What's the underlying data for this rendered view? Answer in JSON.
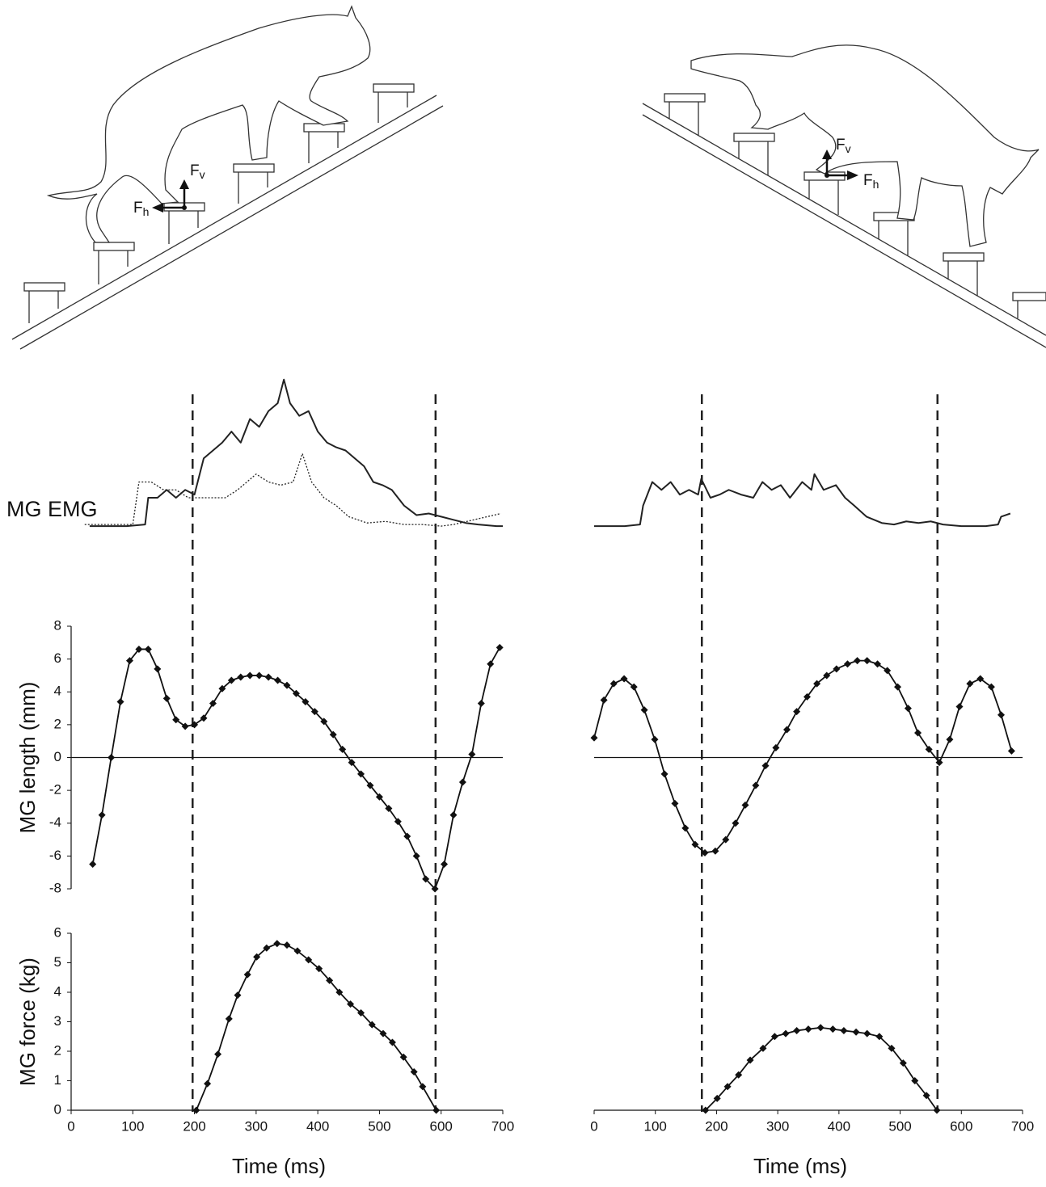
{
  "illustrations": {
    "left": {
      "vertical_force": {
        "symbol": "F",
        "sub": "v"
      },
      "horizontal_force": {
        "symbol": "F",
        "sub": "h"
      }
    },
    "right": {
      "vertical_force": {
        "symbol": "F",
        "sub": "v"
      },
      "horizontal_force": {
        "symbol": "F",
        "sub": "h"
      }
    }
  },
  "chart_data": [
    {
      "type": "emg",
      "ylabel": "MG EMG",
      "xlim": [
        0,
        700
      ],
      "ylim": [
        0,
        1
      ],
      "vlines": [
        197,
        591
      ],
      "series": [
        {
          "color": "#222222",
          "linestyle": "solid",
          "x": [
            30,
            60,
            90,
            120,
            125,
            140,
            155,
            170,
            185,
            200,
            215,
            230,
            245,
            260,
            275,
            290,
            305,
            320,
            335,
            345,
            355,
            370,
            385,
            400,
            415,
            430,
            445,
            460,
            475,
            490,
            505,
            520,
            540,
            560,
            580,
            600,
            620,
            640,
            660,
            690,
            700
          ],
          "values": [
            0.02,
            0.02,
            0.02,
            0.03,
            0.2,
            0.2,
            0.25,
            0.2,
            0.25,
            0.22,
            0.45,
            0.5,
            0.55,
            0.62,
            0.55,
            0.7,
            0.65,
            0.75,
            0.8,
            0.95,
            0.8,
            0.72,
            0.75,
            0.62,
            0.55,
            0.52,
            0.5,
            0.45,
            0.4,
            0.3,
            0.28,
            0.25,
            0.15,
            0.09,
            0.1,
            0.08,
            0.06,
            0.04,
            0.03,
            0.02,
            0.02
          ]
        },
        {
          "color": "#222222",
          "linestyle": "dotted",
          "x": [
            22,
            100,
            110,
            130,
            150,
            170,
            190,
            210,
            230,
            250,
            270,
            285,
            300,
            320,
            340,
            360,
            375,
            390,
            410,
            430,
            450,
            480,
            510,
            540,
            570,
            600,
            620,
            697
          ],
          "values": [
            0.03,
            0.03,
            0.3,
            0.3,
            0.25,
            0.25,
            0.2,
            0.2,
            0.2,
            0.2,
            0.25,
            0.3,
            0.35,
            0.3,
            0.28,
            0.3,
            0.48,
            0.3,
            0.2,
            0.15,
            0.08,
            0.04,
            0.05,
            0.03,
            0.03,
            0.02,
            0.03,
            0.1
          ]
        }
      ]
    },
    {
      "type": "emg",
      "xlim": [
        0,
        700
      ],
      "ylim": [
        0,
        1
      ],
      "vlines": [
        176,
        561
      ],
      "series": [
        {
          "color": "#222222",
          "linestyle": "solid",
          "x": [
            0,
            50,
            75,
            80,
            95,
            110,
            125,
            140,
            155,
            170,
            175,
            190,
            205,
            220,
            240,
            260,
            275,
            290,
            305,
            320,
            340,
            355,
            360,
            375,
            395,
            410,
            425,
            445,
            470,
            490,
            510,
            530,
            550,
            570,
            600,
            640,
            660,
            665,
            680
          ],
          "values": [
            0.02,
            0.02,
            0.03,
            0.15,
            0.3,
            0.25,
            0.3,
            0.22,
            0.25,
            0.22,
            0.32,
            0.2,
            0.22,
            0.25,
            0.22,
            0.2,
            0.3,
            0.25,
            0.28,
            0.2,
            0.3,
            0.25,
            0.35,
            0.25,
            0.28,
            0.2,
            0.15,
            0.08,
            0.04,
            0.03,
            0.05,
            0.04,
            0.05,
            0.03,
            0.02,
            0.02,
            0.03,
            0.08,
            0.1
          ]
        }
      ]
    },
    {
      "type": "line",
      "ylabel": "MG length (mm)",
      "xlim": [
        0,
        700
      ],
      "ylim": [
        -8,
        8
      ],
      "yticks": [
        -8,
        -6,
        -4,
        -2,
        0,
        2,
        4,
        6,
        8
      ],
      "series": [
        {
          "color": "#111111",
          "marker": "diamond",
          "x": [
            35,
            50,
            65,
            80,
            95,
            110,
            125,
            140,
            155,
            170,
            185,
            200,
            215,
            230,
            245,
            260,
            275,
            290,
            305,
            320,
            335,
            350,
            365,
            380,
            395,
            410,
            425,
            440,
            455,
            470,
            485,
            500,
            515,
            530,
            545,
            560,
            575,
            590,
            605,
            620,
            635,
            650,
            665,
            680,
            695
          ],
          "values": [
            -6.5,
            -3.5,
            0,
            3.4,
            5.9,
            6.6,
            6.6,
            5.4,
            3.6,
            2.3,
            1.9,
            2.0,
            2.4,
            3.3,
            4.2,
            4.7,
            4.9,
            5.0,
            5.0,
            4.9,
            4.7,
            4.4,
            3.9,
            3.4,
            2.8,
            2.2,
            1.4,
            0.5,
            -0.3,
            -1.0,
            -1.7,
            -2.4,
            -3.1,
            -3.9,
            -4.8,
            -6.0,
            -7.4,
            -8.0,
            -6.5,
            -3.5,
            -1.5,
            0.2,
            3.3,
            5.7,
            6.7
          ]
        }
      ]
    },
    {
      "type": "line",
      "ylabel": "MG force (kg)",
      "xlabel": "Time (ms)",
      "xlim": [
        0,
        700
      ],
      "ylim": [
        0,
        6
      ],
      "xticks": [
        0,
        100,
        200,
        300,
        400,
        500,
        600,
        700
      ],
      "yticks": [
        0,
        1,
        2,
        3,
        4,
        5,
        6
      ],
      "series": [
        {
          "color": "#111111",
          "marker": "diamond",
          "x": [
            203,
            221,
            238,
            256,
            270,
            286,
            301,
            317,
            334,
            350,
            367,
            385,
            402,
            419,
            435,
            453,
            470,
            488,
            506,
            521,
            539,
            556,
            570,
            592
          ],
          "values": [
            0,
            0.9,
            1.9,
            3.1,
            3.9,
            4.6,
            5.2,
            5.5,
            5.65,
            5.6,
            5.4,
            5.1,
            4.8,
            4.4,
            4.0,
            3.6,
            3.3,
            2.9,
            2.6,
            2.3,
            1.8,
            1.3,
            0.8,
            0
          ]
        }
      ]
    },
    {
      "type": "line",
      "xlim": [
        0,
        700
      ],
      "ylim": [
        -8,
        8
      ],
      "series": [
        {
          "color": "#111111",
          "marker": "diamond",
          "x": [
            0,
            16,
            32,
            49,
            65,
            82,
            99,
            115,
            132,
            149,
            165,
            181,
            198,
            215,
            231,
            247,
            264,
            280,
            297,
            315,
            331,
            348,
            364,
            380,
            396,
            414,
            430,
            446,
            463,
            479,
            496,
            513,
            529,
            547,
            564,
            581,
            597,
            614,
            631,
            649,
            665,
            682
          ],
          "values": [
            1.2,
            3.5,
            4.5,
            4.8,
            4.3,
            2.9,
            1.1,
            -1.0,
            -2.8,
            -4.3,
            -5.3,
            -5.8,
            -5.7,
            -5.0,
            -4.0,
            -2.9,
            -1.7,
            -0.5,
            0.6,
            1.7,
            2.8,
            3.7,
            4.5,
            5.0,
            5.4,
            5.7,
            5.9,
            5.9,
            5.7,
            5.3,
            4.3,
            3.0,
            1.5,
            0.5,
            -0.3,
            1.1,
            3.1,
            4.5,
            4.8,
            4.3,
            2.6,
            0.4
          ]
        }
      ]
    },
    {
      "type": "line",
      "xlabel": "Time (ms)",
      "xlim": [
        0,
        700
      ],
      "ylim": [
        0,
        6
      ],
      "xticks": [
        0,
        100,
        200,
        300,
        400,
        500,
        600,
        700
      ],
      "series": [
        {
          "color": "#111111",
          "marker": "diamond",
          "x": [
            182,
            201,
            218,
            236,
            255,
            276,
            295,
            313,
            331,
            350,
            370,
            390,
            408,
            428,
            446,
            466,
            486,
            505,
            524,
            543,
            560
          ],
          "values": [
            0,
            0.4,
            0.8,
            1.2,
            1.7,
            2.1,
            2.5,
            2.6,
            2.7,
            2.75,
            2.8,
            2.75,
            2.7,
            2.65,
            2.6,
            2.5,
            2.1,
            1.6,
            1.0,
            0.5,
            0
          ]
        }
      ]
    }
  ]
}
